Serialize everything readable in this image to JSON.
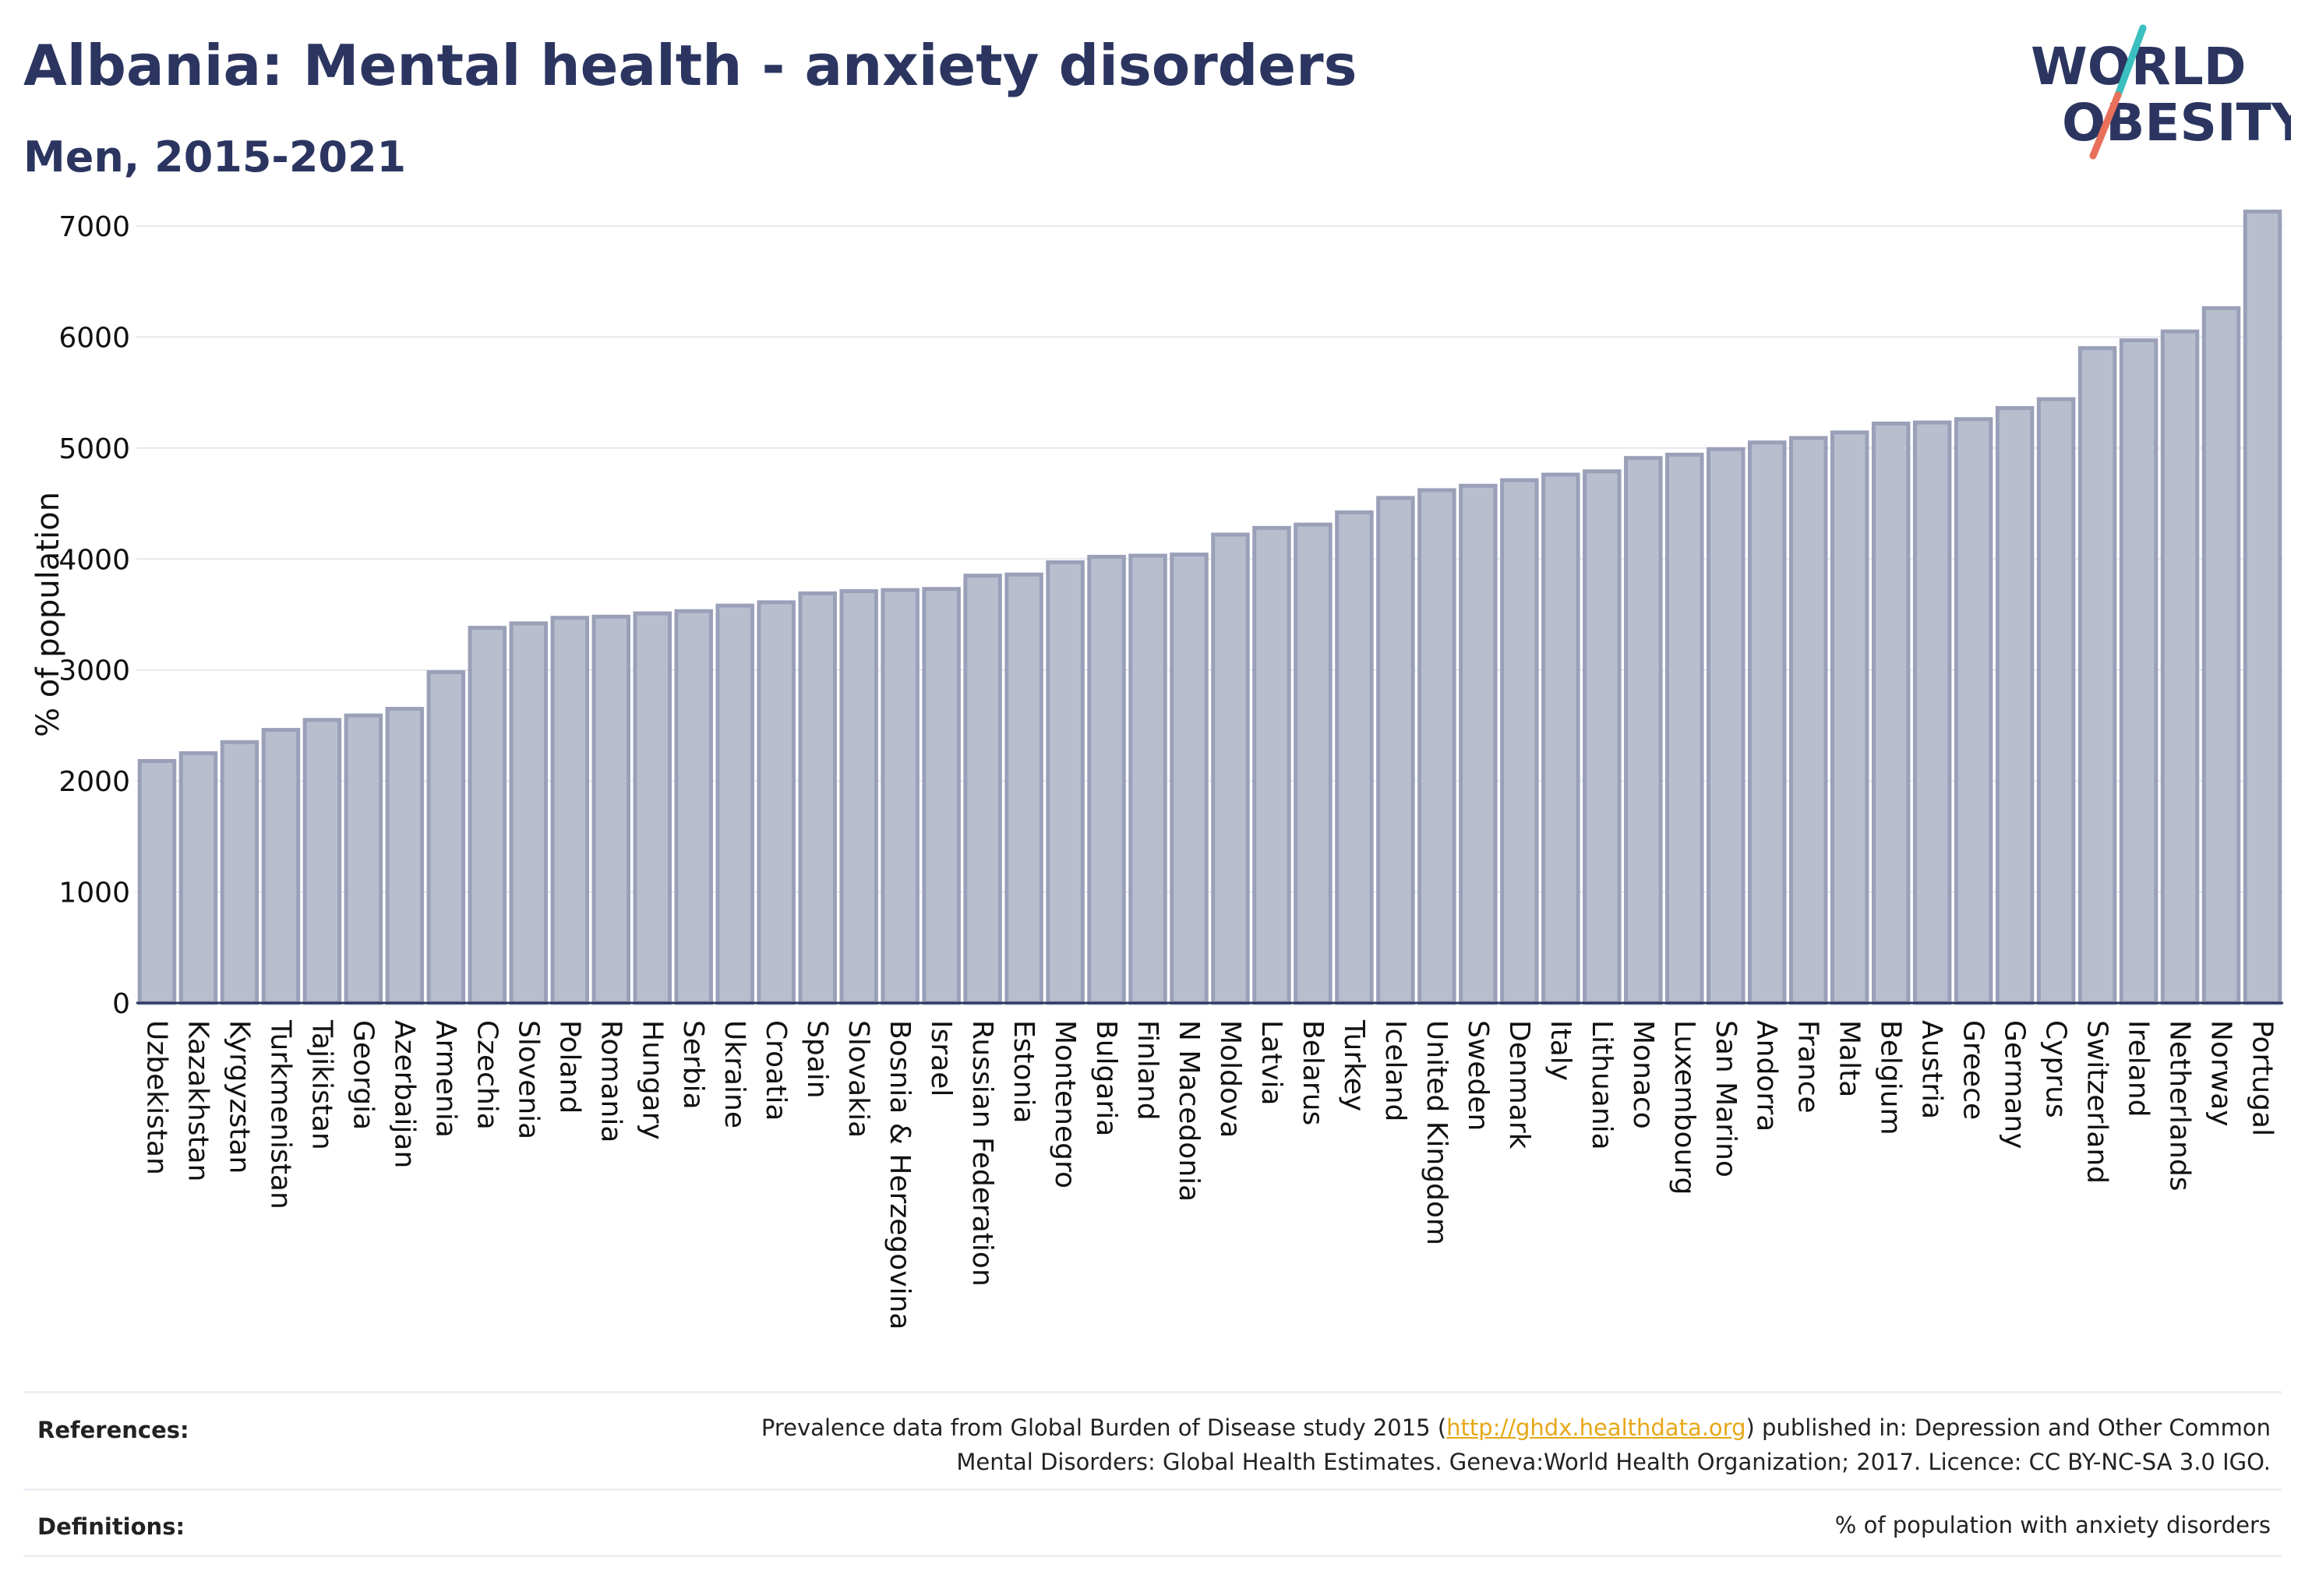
{
  "header": {
    "title": "Albania: Mental health - anxiety disorders",
    "subtitle": "Men, 2015-2021"
  },
  "logo": {
    "line1": "WORLD",
    "line2": "OBESITY",
    "colors": {
      "text": "#2b3560",
      "slash_top": "#3bbfbf",
      "slash_bottom": "#e8705a"
    }
  },
  "colors": {
    "bar_fill": "#b9bece",
    "bar_stroke": "#9aa0b8",
    "grid": "#e6e8ef",
    "axis": "#2b3560"
  },
  "chart_data": {
    "type": "bar",
    "title": "Albania: Mental health - anxiety disorders",
    "subtitle": "Men, 2015-2021",
    "xlabel": "",
    "ylabel": "% of population",
    "ylim": [
      0,
      7000
    ],
    "yticks": [
      0,
      1000,
      2000,
      3000,
      4000,
      5000,
      6000,
      7000
    ],
    "grid": true,
    "legend": "none",
    "categories": [
      "Uzbekistan",
      "Kazakhstan",
      "Kyrgyzstan",
      "Turkmenistan",
      "Tajikistan",
      "Georgia",
      "Azerbaijan",
      "Armenia",
      "Czechia",
      "Slovenia",
      "Poland",
      "Romania",
      "Hungary",
      "Serbia",
      "Ukraine",
      "Croatia",
      "Spain",
      "Slovakia",
      "Bosnia & Herzegovina",
      "Israel",
      "Russian Federation",
      "Estonia",
      "Montenegro",
      "Bulgaria",
      "Finland",
      "N Macedonia",
      "Moldova",
      "Latvia",
      "Belarus",
      "Turkey",
      "Iceland",
      "United Kingdom",
      "Sweden",
      "Denmark",
      "Italy",
      "Lithuania",
      "Monaco",
      "Luxembourg",
      "San Marino",
      "Andorra",
      "France",
      "Malta",
      "Belgium",
      "Austria",
      "Greece",
      "Germany",
      "Cyprus",
      "Switzerland",
      "Ireland",
      "Netherlands",
      "Norway",
      "Portugal"
    ],
    "values": [
      2180,
      2250,
      2350,
      2460,
      2550,
      2590,
      2650,
      2980,
      3380,
      3420,
      3470,
      3480,
      3510,
      3530,
      3580,
      3610,
      3690,
      3710,
      3720,
      3730,
      3850,
      3860,
      3970,
      4020,
      4030,
      4040,
      4220,
      4280,
      4310,
      4420,
      4550,
      4620,
      4660,
      4710,
      4760,
      4790,
      4910,
      4940,
      4990,
      5050,
      5090,
      5140,
      5220,
      5230,
      5260,
      5360,
      5440,
      5900,
      5970,
      6050,
      6260,
      7130
    ]
  },
  "footer": {
    "references_label": "References:",
    "references_pre": "Prevalence data from Global Burden of Disease study 2015 (",
    "references_link": "http://ghdx.healthdata.org",
    "references_post": ") published in: Depression and Other Common",
    "references_line2": "Mental Disorders: Global Health Estimates. Geneva:World Health Organization; 2017. Licence: CC BY-NC-SA 3.0 IGO.",
    "definitions_label": "Definitions:",
    "definitions_text": "% of population with anxiety disorders"
  }
}
